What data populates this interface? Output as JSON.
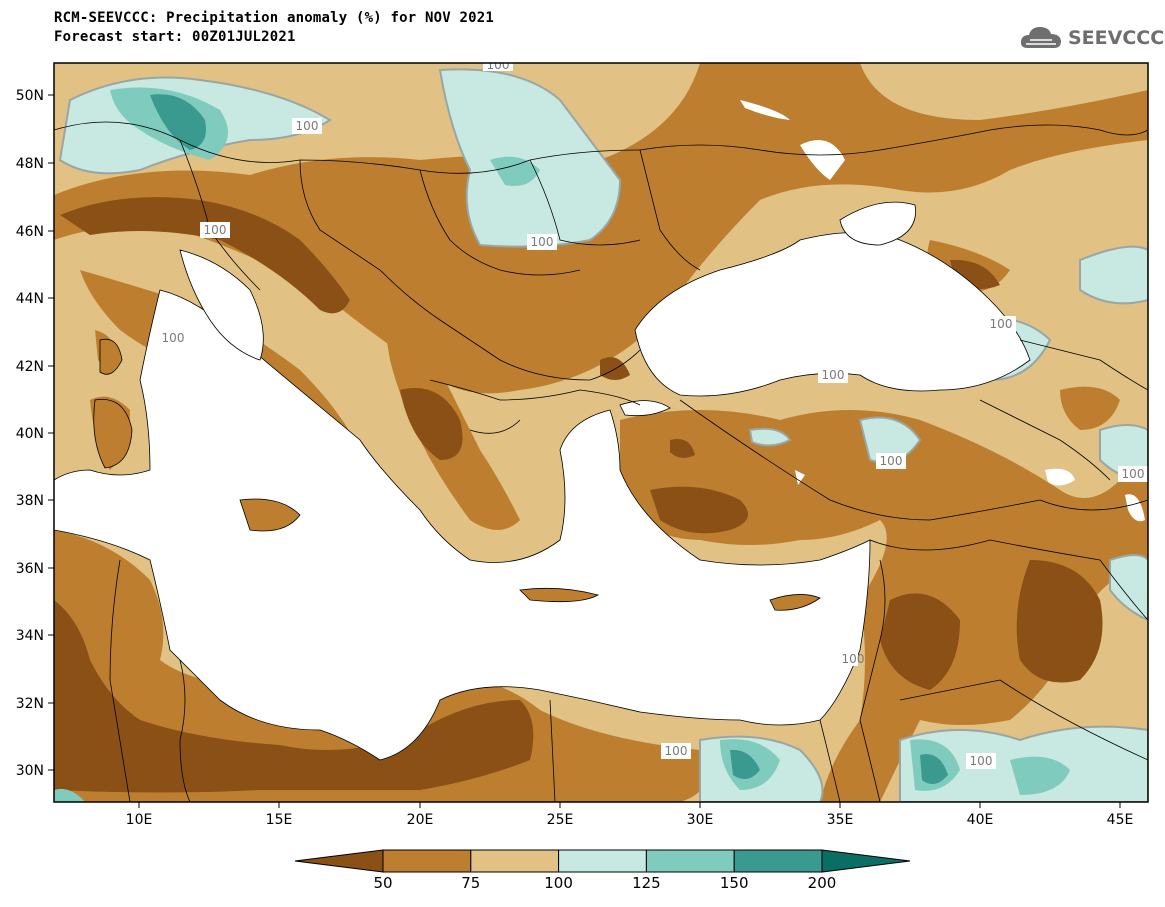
{
  "header": {
    "title_line1": "RCM-SEEVCCC: Precipitation anomaly (%) for NOV 2021",
    "title_line2": "Forecast start: 00Z01JUL2021",
    "logo_text": "SEEVCCC"
  },
  "map": {
    "lat_labels": [
      "50N",
      "48N",
      "46N",
      "44N",
      "42N",
      "40N",
      "38N",
      "36N",
      "34N",
      "32N",
      "30N"
    ],
    "lon_labels": [
      "10E",
      "15E",
      "20E",
      "25E",
      "30E",
      "35E",
      "40E",
      "45E"
    ],
    "contour_labels": [
      "100",
      "100",
      "100",
      "100",
      "100",
      "100",
      "100",
      "100",
      "100",
      "100",
      "100",
      "100"
    ]
  },
  "colorbar": {
    "colors": [
      "#8a5016",
      "#bd7f2f",
      "#e1c184",
      "#c7e9e2",
      "#7fcbbd",
      "#3a9a90",
      "#0a6e64"
    ],
    "labels": [
      "50",
      "75",
      "100",
      "125",
      "150",
      "200"
    ]
  }
}
